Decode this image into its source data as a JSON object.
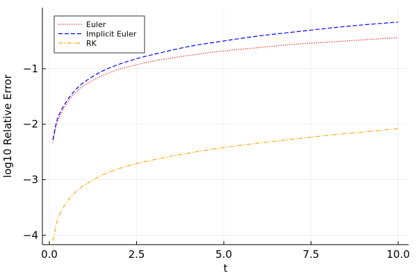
{
  "chart_data": {
    "type": "line",
    "title": "",
    "xlabel": "t",
    "ylabel": "log10 Relative Error",
    "xlim": [
      -0.2,
      10.3
    ],
    "ylim": [
      -4.17,
      0.1
    ],
    "x_ticks": [
      0.0,
      2.5,
      5.0,
      7.5,
      10.0
    ],
    "x_tick_labels": [
      "0.0",
      "2.5",
      "5.0",
      "7.5",
      "10.0"
    ],
    "y_ticks": [
      -1,
      -2,
      -3,
      -4
    ],
    "y_tick_labels": [
      "−1",
      "−2",
      "−3",
      "−4"
    ],
    "grid": true,
    "legend_position": "top-left",
    "series": [
      {
        "name": "Euler",
        "color": "#ff0000",
        "dash": "dotted",
        "x": [
          0.1,
          0.2,
          0.3,
          0.5,
          0.75,
          1.0,
          1.5,
          2.0,
          2.5,
          3.0,
          4.0,
          5.0,
          6.0,
          7.0,
          8.0,
          9.0,
          10.0
        ],
        "y": [
          -2.33,
          -2.02,
          -1.85,
          -1.62,
          -1.43,
          -1.3,
          -1.13,
          -1.01,
          -0.93,
          -0.86,
          -0.76,
          -0.68,
          -0.62,
          -0.56,
          -0.52,
          -0.48,
          -0.44
        ]
      },
      {
        "name": "Implicit Euler",
        "color": "#0000ff",
        "dash": "dashed",
        "x": [
          0.1,
          0.2,
          0.3,
          0.5,
          0.75,
          1.0,
          1.5,
          2.0,
          2.5,
          3.0,
          4.0,
          5.0,
          6.0,
          7.0,
          8.0,
          9.0,
          10.0
        ],
        "y": [
          -2.28,
          -1.97,
          -1.8,
          -1.58,
          -1.38,
          -1.24,
          -1.05,
          -0.92,
          -0.82,
          -0.74,
          -0.6,
          -0.5,
          -0.41,
          -0.34,
          -0.27,
          -0.21,
          -0.16
        ]
      },
      {
        "name": "RK",
        "color": "#ffa500",
        "dash": "dashdot",
        "x": [
          0.1,
          0.2,
          0.3,
          0.5,
          0.75,
          1.0,
          1.5,
          2.0,
          2.5,
          3.0,
          4.0,
          5.0,
          6.0,
          7.0,
          8.0,
          9.0,
          10.0
        ],
        "y": [
          -4.1,
          -3.8,
          -3.62,
          -3.4,
          -3.22,
          -3.1,
          -2.92,
          -2.8,
          -2.71,
          -2.64,
          -2.52,
          -2.42,
          -2.34,
          -2.27,
          -2.2,
          -2.14,
          -2.08
        ]
      }
    ]
  }
}
